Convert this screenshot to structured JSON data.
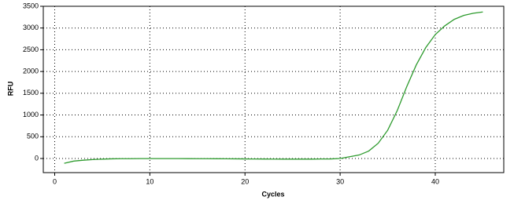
{
  "chart_data": {
    "type": "line",
    "x_label": "Cycles",
    "y_label": "RFU",
    "x": [
      1,
      2,
      3,
      4,
      5,
      6,
      7,
      8,
      9,
      10,
      11,
      12,
      13,
      14,
      15,
      16,
      17,
      18,
      19,
      20,
      21,
      22,
      23,
      24,
      25,
      26,
      27,
      28,
      29,
      30,
      31,
      32,
      33,
      34,
      35,
      36,
      37,
      38,
      39,
      40,
      41,
      42,
      43,
      44,
      45
    ],
    "values": [
      -110,
      -60,
      -40,
      -25,
      -15,
      -8,
      -5,
      -5,
      -3,
      -2,
      -2,
      -2,
      -3,
      -4,
      -5,
      -5,
      -6,
      -7,
      -8,
      -10,
      -12,
      -13,
      -14,
      -15,
      -15,
      -15,
      -15,
      -12,
      -10,
      0,
      40,
      80,
      170,
      350,
      650,
      1100,
      1650,
      2150,
      2550,
      2850,
      3050,
      3200,
      3290,
      3340,
      3370
    ],
    "color": "#2e9b2e",
    "xlim": [
      -1.2,
      47.2
    ],
    "xticks": [
      0,
      10,
      20,
      30,
      40
    ],
    "ylim": [
      -325,
      3500
    ],
    "yticks": [
      0,
      500,
      1000,
      1500,
      2000,
      2500,
      3000,
      3500
    ],
    "grid": true
  }
}
